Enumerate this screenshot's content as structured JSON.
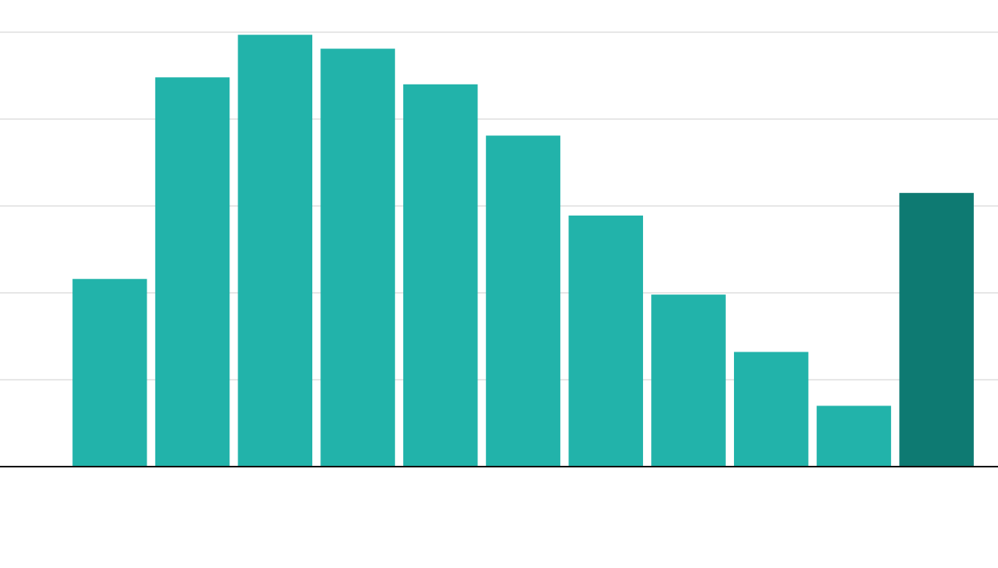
{
  "chart_data": {
    "type": "bar",
    "categories": [
      null,
      null,
      null,
      null,
      null,
      null,
      null,
      null,
      null,
      null,
      null
    ],
    "values": [
      2.16,
      4.48,
      4.97,
      4.81,
      4.4,
      3.81,
      2.89,
      1.98,
      1.32,
      0.7,
      3.15
    ],
    "colors": [
      "#22b3aa",
      "#22b3aa",
      "#22b3aa",
      "#22b3aa",
      "#22b3aa",
      "#22b3aa",
      "#22b3aa",
      "#22b3aa",
      "#22b3aa",
      "#22b3aa",
      "#0e7a72"
    ],
    "ylim": [
      0,
      5
    ],
    "yticks": [
      0,
      1,
      2,
      3,
      4,
      5
    ],
    "grid": true
  }
}
